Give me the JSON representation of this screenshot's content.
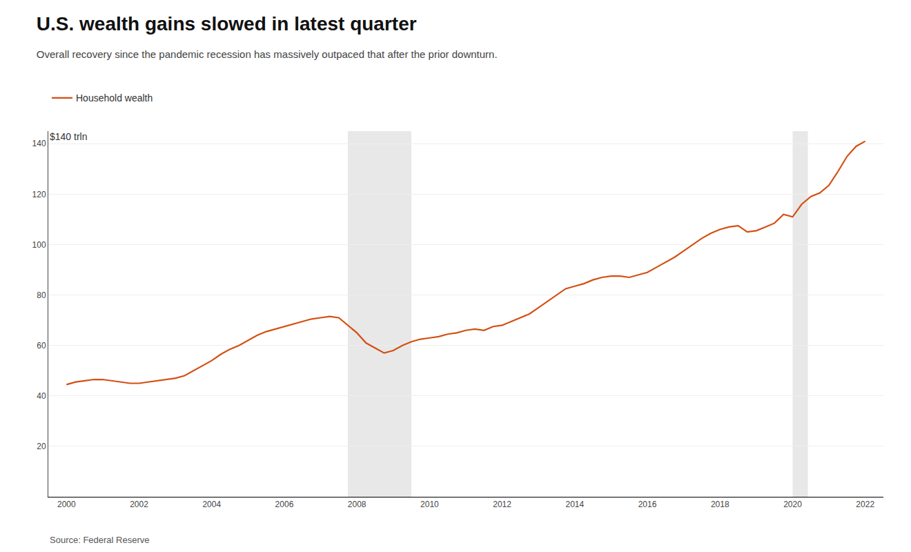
{
  "chart_data": {
    "type": "line",
    "title": "U.S. wealth gains slowed in latest quarter",
    "subtitle": "Overall recovery since the pandemic recession has massively outpaced that after the prior downturn.",
    "ylabel": "$140 trln",
    "source": "Source: Federal Reserve",
    "x": [
      2000.0,
      2000.25,
      2000.5,
      2000.75,
      2001.0,
      2001.25,
      2001.5,
      2001.75,
      2002.0,
      2002.25,
      2002.5,
      2002.75,
      2003.0,
      2003.25,
      2003.5,
      2003.75,
      2004.0,
      2004.25,
      2004.5,
      2004.75,
      2005.0,
      2005.25,
      2005.5,
      2005.75,
      2006.0,
      2006.25,
      2006.5,
      2006.75,
      2007.0,
      2007.25,
      2007.5,
      2007.75,
      2008.0,
      2008.25,
      2008.5,
      2008.75,
      2009.0,
      2009.25,
      2009.5,
      2009.75,
      2010.0,
      2010.25,
      2010.5,
      2010.75,
      2011.0,
      2011.25,
      2011.5,
      2011.75,
      2012.0,
      2012.25,
      2012.5,
      2012.75,
      2013.0,
      2013.25,
      2013.5,
      2013.75,
      2014.0,
      2014.25,
      2014.5,
      2014.75,
      2015.0,
      2015.25,
      2015.5,
      2015.75,
      2016.0,
      2016.25,
      2016.5,
      2016.75,
      2017.0,
      2017.25,
      2017.5,
      2017.75,
      2018.0,
      2018.25,
      2018.5,
      2018.75,
      2019.0,
      2019.25,
      2019.5,
      2019.75,
      2020.0,
      2020.25,
      2020.5,
      2020.75,
      2021.0,
      2021.25,
      2021.5,
      2021.75,
      2022.0
    ],
    "series": [
      {
        "name": "Household wealth",
        "color": "#d44f12",
        "values": [
          44.5,
          45.5,
          46.0,
          46.5,
          46.5,
          46.0,
          45.5,
          45.0,
          45.0,
          45.5,
          46.0,
          46.5,
          47.0,
          48.0,
          50.0,
          52.0,
          54.0,
          56.5,
          58.5,
          60.0,
          62.0,
          64.0,
          65.5,
          66.5,
          67.5,
          68.5,
          69.5,
          70.5,
          71.0,
          71.5,
          71.0,
          68.0,
          65.0,
          61.0,
          59.0,
          57.0,
          58.0,
          60.0,
          61.5,
          62.5,
          63.0,
          63.5,
          64.5,
          65.0,
          66.0,
          66.5,
          66.0,
          67.5,
          68.0,
          69.5,
          71.0,
          72.5,
          75.0,
          77.5,
          80.0,
          82.5,
          83.5,
          84.5,
          86.0,
          87.0,
          87.5,
          87.5,
          87.0,
          88.0,
          89.0,
          91.0,
          93.0,
          95.0,
          97.5,
          100.0,
          102.5,
          104.5,
          106.0,
          107.0,
          107.5,
          105.0,
          105.5,
          107.0,
          108.5,
          112.0,
          111.0,
          116.0,
          119.0,
          120.5,
          123.5,
          129.0,
          135.0,
          139.0,
          141.0
        ]
      }
    ],
    "recessions": [
      {
        "start": 2007.75,
        "end": 2009.5
      },
      {
        "start": 2020.0,
        "end": 2020.42
      }
    ],
    "xlim": [
      1999.5,
      2022.5
    ],
    "xticks": [
      2000,
      2002,
      2004,
      2006,
      2008,
      2010,
      2012,
      2014,
      2016,
      2018,
      2020,
      2022
    ],
    "ylim": [
      0,
      145
    ],
    "yticks": [
      20,
      40,
      60,
      80,
      100,
      120,
      140
    ],
    "grid": true,
    "legend": "top-left"
  }
}
